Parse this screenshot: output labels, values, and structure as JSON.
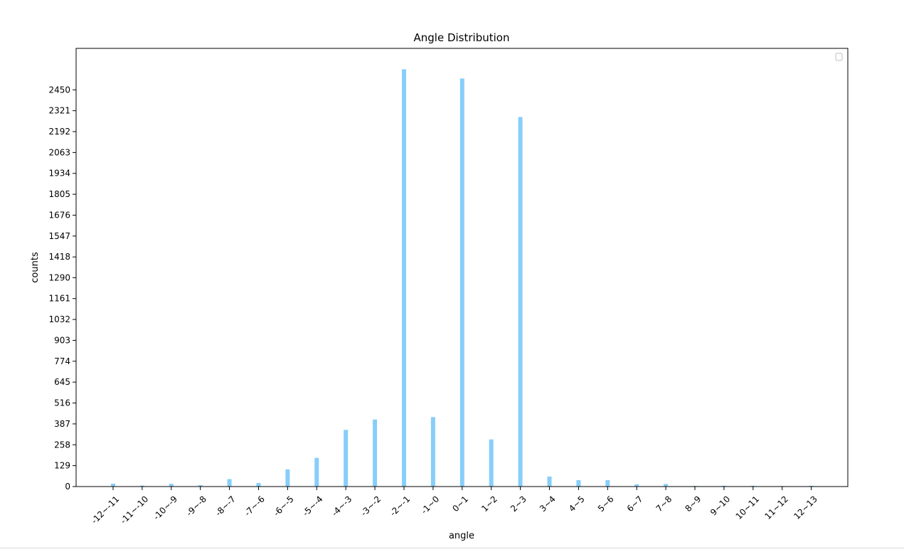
{
  "chart_data": {
    "type": "bar",
    "title": "Angle Distribution",
    "xlabel": "angle",
    "ylabel": "counts",
    "categories": [
      "-12~-11",
      "-11~-10",
      "-10~-9",
      "-9~-8",
      "-8~-7",
      "-7~-6",
      "-6~-5",
      "-5~-4",
      "-4~-3",
      "-3~-2",
      "-2~-1",
      "-1~0",
      "0~1",
      "1~2",
      "2~3",
      "3~4",
      "4~5",
      "5~6",
      "6~7",
      "7~8",
      "8~9",
      "9~10",
      "10~11",
      "11~12",
      "12~13"
    ],
    "values": [
      18,
      6,
      17,
      9,
      46,
      22,
      106,
      177,
      350,
      414,
      2577,
      429,
      2520,
      291,
      2282,
      62,
      40,
      40,
      14,
      16,
      4,
      5,
      5,
      3,
      5
    ],
    "yticks": [
      0,
      129,
      258,
      387,
      516,
      645,
      774,
      903,
      1032,
      1161,
      1290,
      1418,
      1547,
      1676,
      1805,
      1934,
      2063,
      2192,
      2321,
      2450
    ],
    "ylim": [
      0,
      2706
    ],
    "bar_color": "#87cefa",
    "grid": false,
    "legend": "upper right (empty)"
  }
}
